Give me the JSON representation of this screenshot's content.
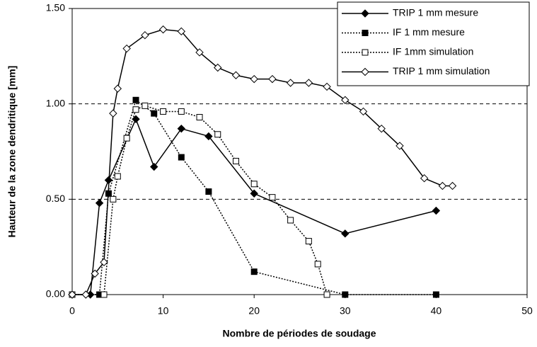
{
  "chart_data": {
    "type": "line",
    "xlabel": "Nombre de périodes de soudage",
    "ylabel": "Hauteur de la zone dendritique [mm]",
    "xlim": [
      0,
      50
    ],
    "xticks": [
      0,
      10,
      20,
      30,
      40,
      50
    ],
    "ylim": [
      0,
      1.5
    ],
    "yticks": [
      {
        "value": 0,
        "label": "0.00"
      },
      {
        "value": 0.5,
        "label": "0.50"
      },
      {
        "value": 1,
        "label": "1.00"
      },
      {
        "value": 1.5,
        "label": "1.50"
      }
    ],
    "grid": true,
    "legend": "upper right",
    "series": [
      {
        "name": "TRIP 1 mm mesure",
        "color": "#000000",
        "marker": "diamond",
        "filled": true,
        "dash": "solid",
        "x": [
          0,
          2,
          3,
          4,
          7,
          9,
          12,
          15,
          20,
          30,
          40
        ],
        "values": [
          0,
          0,
          0.48,
          0.6,
          0.92,
          0.67,
          0.87,
          0.83,
          0.53,
          0.32,
          0.44
        ]
      },
      {
        "name": "IF 1 mm mesure",
        "color": "#000000",
        "marker": "square",
        "filled": true,
        "dash": "dotted",
        "x": [
          0,
          3,
          4,
          7,
          9,
          12,
          15,
          20,
          30,
          40
        ],
        "values": [
          0,
          0,
          0.53,
          1.02,
          0.95,
          0.72,
          0.54,
          0.12,
          0,
          0
        ]
      },
      {
        "name": "IF 1mm simulation",
        "color": "#000000",
        "marker": "square",
        "filled": false,
        "dash": "dotted",
        "x": [
          0,
          3.5,
          4.5,
          5,
          6,
          7,
          8,
          10,
          12,
          14,
          16,
          18,
          20,
          22,
          24,
          26,
          27,
          28
        ],
        "values": [
          0,
          0,
          0.5,
          0.62,
          0.82,
          0.97,
          0.99,
          0.96,
          0.96,
          0.93,
          0.84,
          0.7,
          0.58,
          0.51,
          0.39,
          0.28,
          0.16,
          0
        ]
      },
      {
        "name": "TRIP 1 mm simulation",
        "color": "#000000",
        "marker": "diamond",
        "filled": false,
        "dash": "solid",
        "x": [
          0,
          1.5,
          2.5,
          3.5,
          4.5,
          5,
          6,
          8,
          10,
          12,
          14,
          16,
          18,
          20,
          22,
          24,
          26,
          28,
          30,
          32,
          34,
          36,
          38.7,
          40.7,
          41.8
        ],
        "values": [
          0,
          0,
          0.11,
          0.17,
          0.95,
          1.08,
          1.29,
          1.36,
          1.39,
          1.38,
          1.27,
          1.19,
          1.15,
          1.13,
          1.13,
          1.11,
          1.11,
          1.09,
          1.02,
          0.96,
          0.87,
          0.78,
          0.61,
          0.57,
          0.57
        ]
      }
    ]
  }
}
